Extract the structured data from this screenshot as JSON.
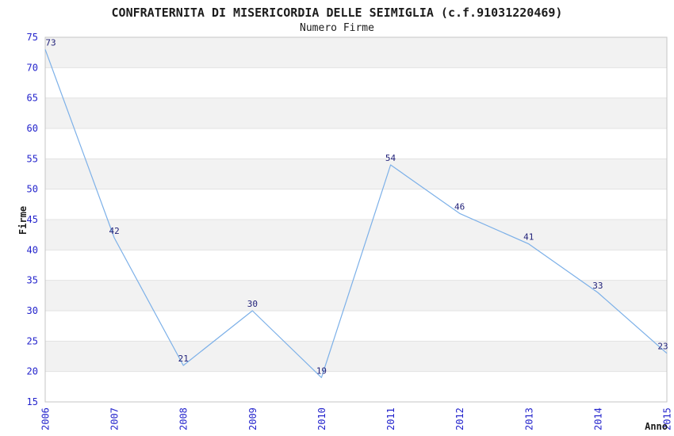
{
  "chart_data": {
    "type": "line",
    "title": "CONFRATERNITA DI MISERICORDIA DELLE SEIMIGLIA (c.f.91031220469)",
    "subtitle": "Numero Firme",
    "xlabel": "Anno",
    "ylabel": "Firme",
    "categories": [
      "2006",
      "2007",
      "2008",
      "2009",
      "2010",
      "2011",
      "2012",
      "2013",
      "2014",
      "2015"
    ],
    "series": [
      {
        "name": "Numero Firme",
        "values": [
          73,
          42,
          21,
          30,
          19,
          54,
          46,
          41,
          33,
          23
        ]
      }
    ],
    "ylim": [
      15,
      75
    ],
    "ytick_step": 5,
    "yticks": [
      15,
      20,
      25,
      30,
      35,
      40,
      45,
      50,
      55,
      60,
      65,
      70,
      75
    ],
    "grid": "horizontal alternating bands every 5 units, light gridline at each tick",
    "legend_position": "none",
    "point_labels_visible": true,
    "x_tick_rotation_degrees": 90,
    "colors": {
      "line": "#7cb0e8",
      "tick_label": "#2424cc",
      "data_label": "#1f1f78",
      "band_fill": "#f2f2f2",
      "gridline": "#e2e2e2",
      "plot_border": "#c6c6c6",
      "text": "#1c1c1c",
      "background": "#ffffff"
    }
  }
}
